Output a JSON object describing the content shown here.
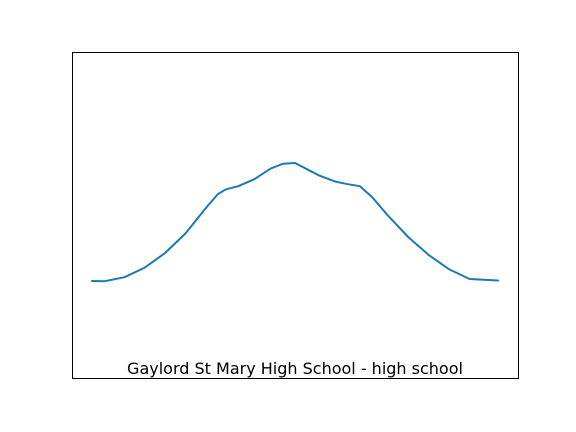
{
  "chart_data": {
    "type": "line",
    "title": "Gaylord St Mary High School - high school",
    "xlabel": "",
    "ylabel": "",
    "axes_ticks_visible": false,
    "grid": false,
    "colors": {
      "line": "#1f77b4"
    },
    "xlim": [
      0,
      100
    ],
    "ylim": [
      0,
      100
    ],
    "series": [
      {
        "x": [
          0,
          3,
          8,
          13,
          18,
          23,
          28,
          31,
          33,
          36,
          40,
          44,
          47,
          50,
          53,
          56,
          60,
          63,
          66,
          69,
          73,
          78,
          83,
          88,
          93,
          100
        ],
        "y": [
          30,
          29.9,
          31.5,
          35.3,
          41.1,
          48.8,
          58.8,
          64.4,
          66.3,
          67.5,
          70.3,
          74.5,
          76.4,
          76.7,
          74.2,
          71.7,
          69.3,
          68.3,
          67.5,
          63.2,
          55.7,
          47.2,
          40.2,
          34.6,
          30.8,
          30.2
        ]
      }
    ]
  }
}
